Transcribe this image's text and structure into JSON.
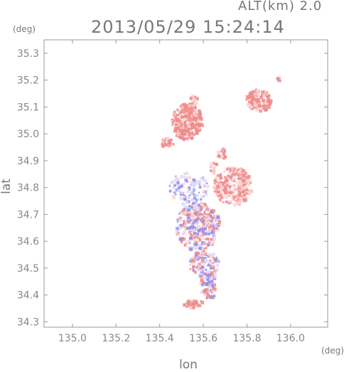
{
  "header": {
    "alt_label": "ALT(km) 2.0",
    "timestamp": "2013/05/29 15:24:14"
  },
  "chart_data": {
    "type": "heatmap",
    "title": "2013/05/29 15:24:14",
    "xlabel": "lon",
    "ylabel": "lat",
    "xunit": "(deg)",
    "yunit": "(deg)",
    "xlim": [
      134.87,
      136.17
    ],
    "ylim": [
      34.28,
      35.35
    ],
    "xticks": [
      "135.0",
      "135.2",
      "135.4",
      "135.6",
      "135.8",
      "136.0"
    ],
    "yticks": [
      "34.3",
      "34.4",
      "34.5",
      "34.6",
      "34.7",
      "34.8",
      "34.9",
      "35.0",
      "35.1",
      "35.2",
      "35.3"
    ],
    "grid": false,
    "colors": {
      "positive": "#f08c8c",
      "positive_light": "#fbd3d3",
      "negative": "#8c8cf0",
      "negative_light": "#d9d9fb",
      "axis": "#999999"
    },
    "regions": [
      {
        "lon": 135.52,
        "lat": 35.05,
        "rlon": 0.07,
        "rlat": 0.07,
        "sign": 1,
        "density": 0.85,
        "n": 260
      },
      {
        "lon": 135.43,
        "lat": 34.97,
        "rlon": 0.03,
        "rlat": 0.02,
        "sign": 1,
        "density": 0.6,
        "n": 40
      },
      {
        "lon": 135.55,
        "lat": 35.13,
        "rlon": 0.02,
        "rlat": 0.02,
        "sign": 1,
        "density": 0.6,
        "n": 20
      },
      {
        "lon": 135.85,
        "lat": 35.13,
        "rlon": 0.06,
        "rlat": 0.04,
        "sign": 1,
        "density": 0.8,
        "n": 150
      },
      {
        "lon": 135.94,
        "lat": 35.21,
        "rlon": 0.01,
        "rlat": 0.01,
        "sign": 1,
        "density": 0.7,
        "n": 8
      },
      {
        "lon": 135.68,
        "lat": 34.93,
        "rlon": 0.02,
        "rlat": 0.02,
        "sign": 1,
        "density": 0.5,
        "n": 20
      },
      {
        "lon": 135.64,
        "lat": 34.88,
        "rlon": 0.02,
        "rlat": 0.02,
        "sign": 1,
        "density": 0.5,
        "n": 18
      },
      {
        "lon": 135.73,
        "lat": 34.81,
        "rlon": 0.09,
        "rlat": 0.07,
        "sign": 1,
        "density": 0.55,
        "n": 280
      },
      {
        "lon": 135.53,
        "lat": 34.8,
        "rlon": 0.09,
        "rlat": 0.06,
        "sign": -1,
        "density": 0.25,
        "n": 120
      },
      {
        "lon": 135.57,
        "lat": 34.66,
        "rlon": 0.1,
        "rlat": 0.09,
        "sign": 0,
        "density": 0.45,
        "n": 420
      },
      {
        "lon": 135.6,
        "lat": 34.52,
        "rlon": 0.07,
        "rlat": 0.05,
        "sign": 0,
        "density": 0.3,
        "n": 130
      },
      {
        "lon": 135.62,
        "lat": 34.44,
        "rlon": 0.04,
        "rlat": 0.05,
        "sign": 0,
        "density": 0.3,
        "n": 70
      },
      {
        "lon": 135.55,
        "lat": 34.37,
        "rlon": 0.05,
        "rlat": 0.015,
        "sign": 1,
        "density": 0.8,
        "n": 45
      }
    ]
  }
}
